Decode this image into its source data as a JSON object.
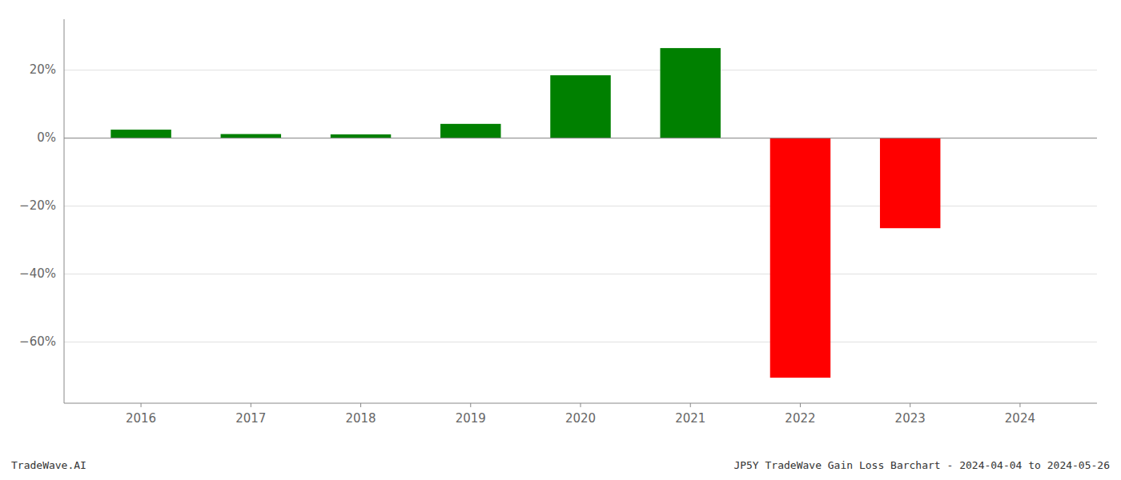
{
  "chart_data": {
    "type": "bar",
    "x": [
      2016,
      2017,
      2018,
      2019,
      2020,
      2021,
      2022,
      2023
    ],
    "values": [
      0.025,
      0.012,
      0.011,
      0.042,
      0.185,
      0.265,
      -0.705,
      -0.265
    ],
    "colors": [
      "#008000",
      "#008000",
      "#008000",
      "#008000",
      "#008000",
      "#008000",
      "#ff0000",
      "#ff0000"
    ],
    "xlim": [
      2015.3,
      2024.7
    ],
    "xticks": [
      2016,
      2017,
      2018,
      2019,
      2020,
      2021,
      2022,
      2023,
      2024
    ],
    "ylim": [
      -0.78,
      0.35
    ],
    "yticks": [
      {
        "value": -0.6,
        "label": "−60%"
      },
      {
        "value": -0.4,
        "label": "−40%"
      },
      {
        "value": -0.2,
        "label": "−20%"
      },
      {
        "value": 0.0,
        "label": "0%"
      },
      {
        "value": 0.2,
        "label": "20%"
      }
    ],
    "grid": true,
    "annotations": [
      "TradeWave.AI",
      "JP5Y TradeWave Gain Loss Barchart - 2024-04-04 to 2024-05-26"
    ]
  }
}
